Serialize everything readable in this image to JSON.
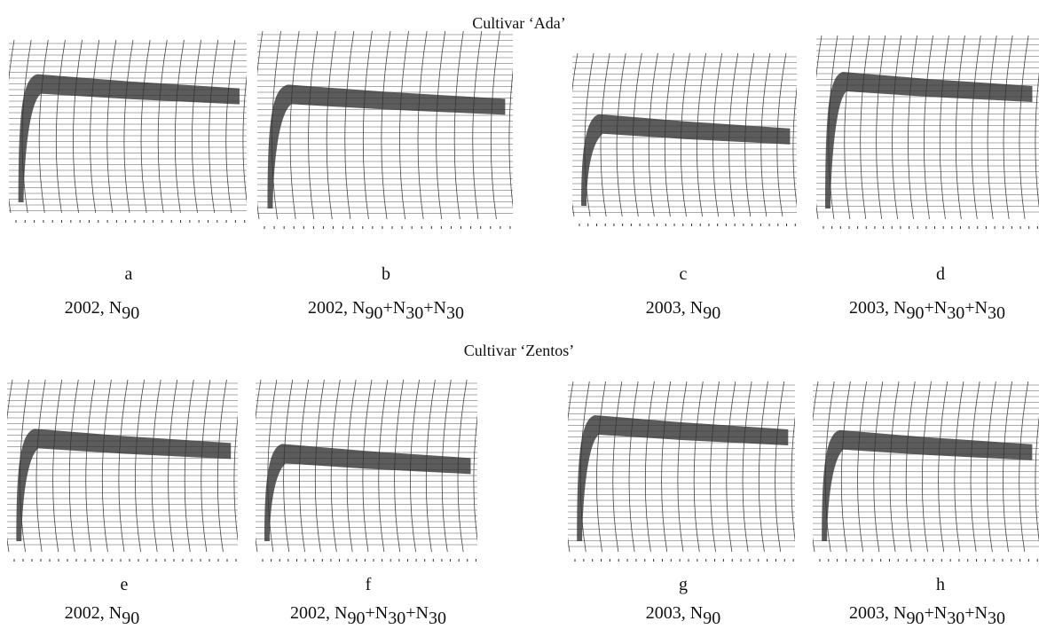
{
  "sections": [
    {
      "title": "Cultivar ‘Ada’",
      "panels": [
        {
          "letter": "a",
          "caption": [
            {
              "t": "2002, N",
              "s": "90"
            }
          ]
        },
        {
          "letter": "b",
          "caption": [
            {
              "t": "2002, N",
              "s": "90"
            },
            {
              "t": "+N",
              "s": "30"
            },
            {
              "t": "+N",
              "s": "30"
            }
          ]
        },
        {
          "letter": "c",
          "caption": [
            {
              "t": "2003, N",
              "s": "90"
            }
          ]
        },
        {
          "letter": "d",
          "caption": [
            {
              "t": "2003, N",
              "s": "90"
            },
            {
              "t": "+N",
              "s": "30"
            },
            {
              "t": "+N",
              "s": "30"
            }
          ]
        }
      ]
    },
    {
      "title": "Cultivar ‘Zentos’",
      "panels": [
        {
          "letter": "e",
          "caption": [
            {
              "t": "2002, N",
              "s": "90"
            }
          ]
        },
        {
          "letter": "f",
          "caption": [
            {
              "t": "2002, N",
              "s": "90"
            },
            {
              "t": "+N",
              "s": "30"
            },
            {
              "t": "+N",
              "s": "30"
            }
          ]
        },
        {
          "letter": "g",
          "caption": [
            {
              "t": "2003, N",
              "s": "90"
            }
          ]
        },
        {
          "letter": "h",
          "caption": [
            {
              "t": "2003, N",
              "s": "90"
            },
            {
              "t": "+N",
              "s": "30"
            },
            {
              "t": "+N",
              "s": "30"
            }
          ]
        }
      ]
    }
  ]
}
